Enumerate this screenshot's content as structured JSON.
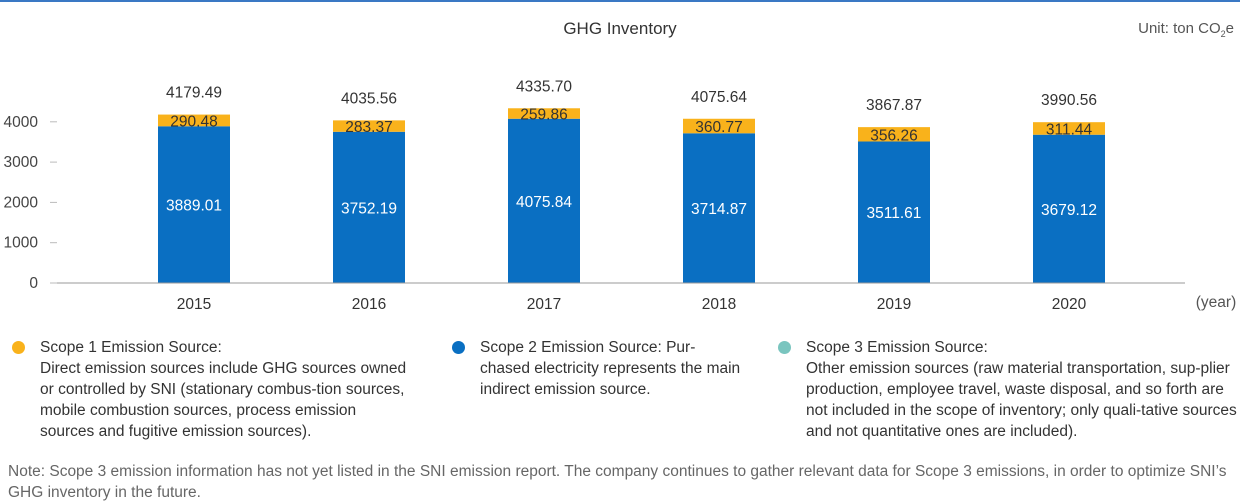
{
  "title": "GHG Inventory",
  "unit_prefix": "Unit: ton CO",
  "unit_sub": "2",
  "unit_suffix": "e",
  "colors": {
    "scope1": "#f9b21b",
    "scope2": "#0a6fc2",
    "scope3": "#7ac5bf",
    "rule": "#3a78c4"
  },
  "chart_data": {
    "type": "bar",
    "stacked": true,
    "categories": [
      "2015",
      "2016",
      "2017",
      "2018",
      "2019",
      "2020"
    ],
    "series": [
      {
        "values": [
          3889.01,
          3752.19,
          4075.84,
          3714.87,
          3511.61,
          3679.12
        ]
      },
      {
        "values": [
          290.48,
          283.37,
          259.86,
          360.77,
          356.26,
          311.44
        ]
      }
    ],
    "totals": [
      4179.49,
      4035.56,
      4335.7,
      4075.64,
      3867.87,
      3990.56
    ],
    "x_unit_label": "(year)",
    "yticks": [
      0,
      1000,
      2000,
      3000,
      4000
    ],
    "ylim": [
      0,
      4000
    ],
    "grid": false
  },
  "legend": [
    {
      "title": "Scope 1 Emission Source:",
      "desc": "Direct emission sources include GHG sources owned or controlled by SNI (stationary combus-tion sources, mobile combustion sources, process emission sources and fugitive emission sources)."
    },
    {
      "title": "Scope 2 Emission Source: Pur-",
      "desc": "chased electricity represents the main indirect emission source."
    },
    {
      "title": "Scope 3 Emission Source:",
      "desc": "Other emission sources (raw material transportation, sup-plier production, employee travel, waste disposal, and so forth are not included in the scope of inventory; only quali-tative sources and not quantitative ones are included)."
    }
  ],
  "note": "Note: Scope 3 emission information has not yet listed in the SNI emission report. The company continues to gather relevant data for Scope 3 emissions, in order to optimize SNI’s GHG inventory in the future."
}
